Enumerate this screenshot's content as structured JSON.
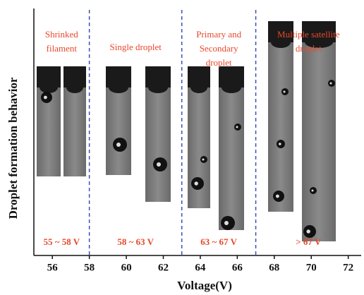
{
  "chart_data": {
    "type": "region-strip",
    "xlabel": "Voltage(V)",
    "ylabel": "Droplet formation behavior",
    "xlim": [
      55,
      72.7
    ],
    "xticks": [
      56,
      58,
      60,
      62,
      64,
      66,
      68,
      70,
      72
    ],
    "dividers": [
      58,
      63,
      67
    ],
    "divider_color": "#3a4fc0",
    "regions": [
      {
        "lines": [
          "Shrinked",
          "filament"
        ],
        "range": "55 ~ 58 V"
      },
      {
        "lines": [
          "Single droplet"
        ],
        "range": "58 ~ 63 V"
      },
      {
        "lines": [
          "Primary and",
          "Secondary",
          "droplet"
        ],
        "range": "63 ~ 67 V"
      },
      {
        "lines": [
          "Multiple satellite",
          "droplet"
        ],
        "range": "> 67 V"
      }
    ]
  }
}
